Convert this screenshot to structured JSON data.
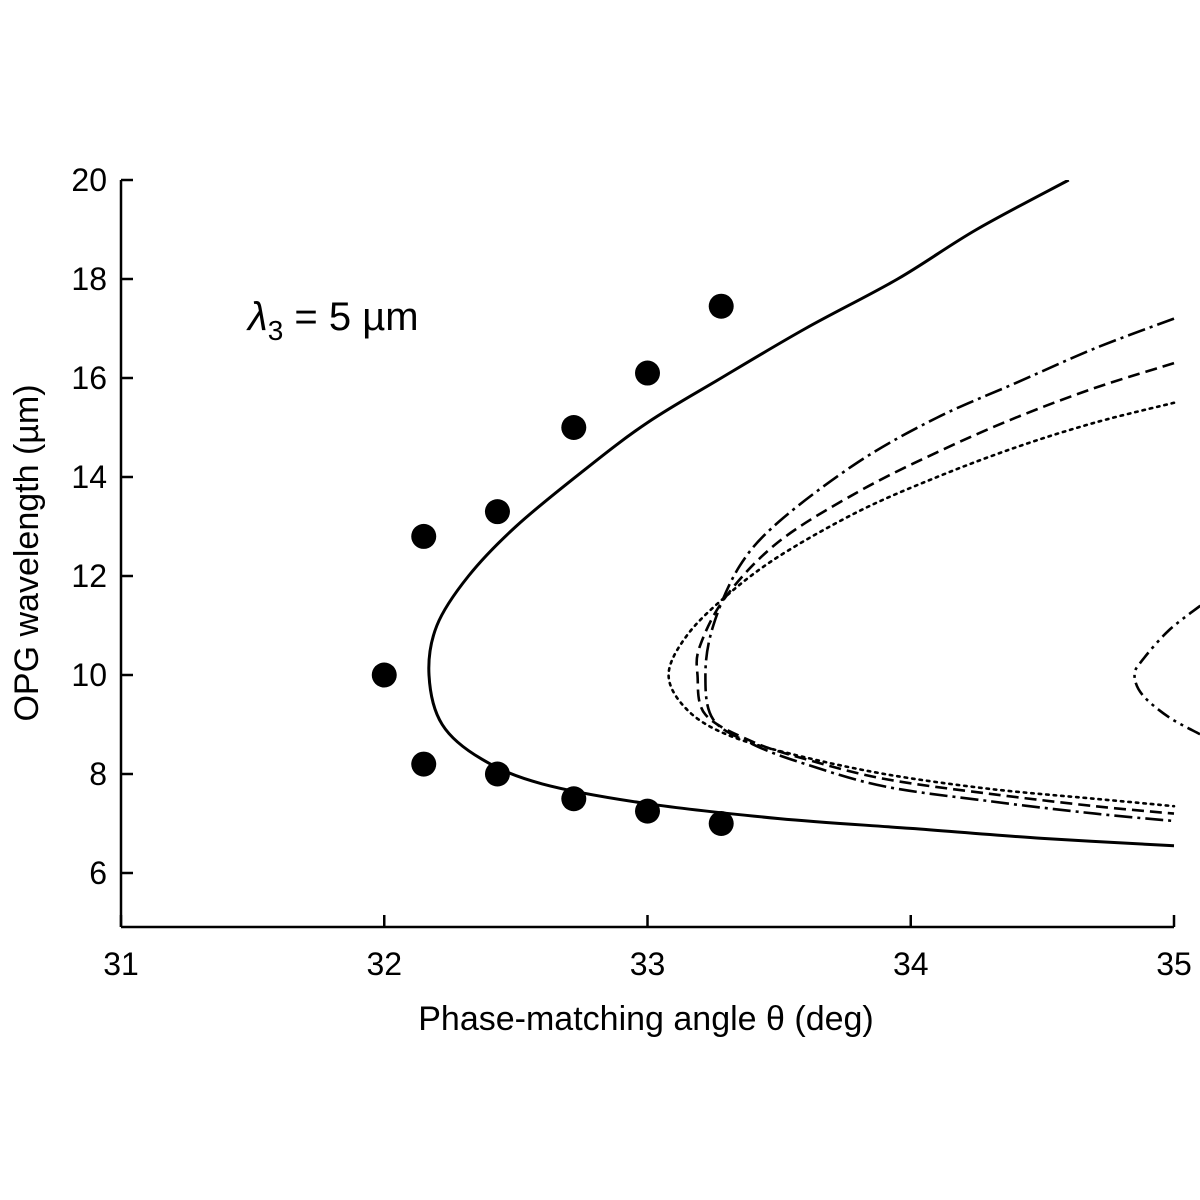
{
  "chart_data": {
    "type": "scatter",
    "title": "",
    "xlabel": "Phase-matching angle θ (deg)",
    "ylabel": "OPG wavelength (µm)",
    "xlim": [
      31,
      35
    ],
    "ylim": [
      5,
      20
    ],
    "x_ticks": [
      "31",
      "32",
      "33",
      "34",
      "35"
    ],
    "y_ticks": [
      "6",
      "8",
      "10",
      "12",
      "14",
      "16",
      "18",
      "20"
    ],
    "grid": false,
    "legend": "none",
    "annotation": {
      "symbol": "λ",
      "subscript": "3",
      "rest": " = 5 µm"
    },
    "markers": {
      "x": [
        32.0,
        32.15,
        32.15,
        32.43,
        32.43,
        32.72,
        32.72,
        33.0,
        33.0,
        33.28,
        33.28
      ],
      "y": [
        10.0,
        12.8,
        8.2,
        13.3,
        8.0,
        15.0,
        7.5,
        16.1,
        7.25,
        17.45,
        7.0
      ]
    },
    "curves": [
      {
        "style": "solid",
        "points": [
          [
            34.6,
            20.0
          ],
          [
            34.25,
            19.0
          ],
          [
            33.95,
            18.0
          ],
          [
            33.6,
            17.0
          ],
          [
            33.28,
            16.0
          ],
          [
            33.0,
            15.1
          ],
          [
            32.75,
            14.1
          ],
          [
            32.5,
            13.0
          ],
          [
            32.32,
            12.0
          ],
          [
            32.2,
            11.0
          ],
          [
            32.17,
            10.0
          ],
          [
            32.22,
            9.0
          ],
          [
            32.37,
            8.3
          ],
          [
            32.6,
            7.8
          ],
          [
            33.0,
            7.4
          ],
          [
            33.5,
            7.1
          ],
          [
            34.0,
            6.9
          ],
          [
            34.5,
            6.7
          ],
          [
            35.0,
            6.55
          ]
        ]
      },
      {
        "style": "dash-dot",
        "points": [
          [
            35.0,
            17.2
          ],
          [
            34.7,
            16.6
          ],
          [
            34.4,
            15.9
          ],
          [
            34.1,
            15.2
          ],
          [
            33.8,
            14.3
          ],
          [
            33.5,
            13.1
          ],
          [
            33.35,
            12.2
          ],
          [
            33.25,
            11.0
          ],
          [
            33.22,
            10.0
          ],
          [
            33.25,
            9.1
          ],
          [
            33.4,
            8.6
          ],
          [
            33.6,
            8.2
          ],
          [
            33.9,
            7.75
          ],
          [
            34.3,
            7.45
          ],
          [
            34.7,
            7.2
          ],
          [
            35.0,
            7.05
          ]
        ]
      },
      {
        "style": "dashed",
        "points": [
          [
            35.0,
            16.3
          ],
          [
            34.7,
            15.8
          ],
          [
            34.4,
            15.2
          ],
          [
            34.1,
            14.5
          ],
          [
            33.8,
            13.7
          ],
          [
            33.5,
            12.7
          ],
          [
            33.3,
            11.6
          ],
          [
            33.2,
            10.6
          ],
          [
            33.19,
            10.0
          ],
          [
            33.22,
            9.2
          ],
          [
            33.4,
            8.65
          ],
          [
            33.6,
            8.3
          ],
          [
            33.9,
            7.9
          ],
          [
            34.3,
            7.6
          ],
          [
            34.7,
            7.35
          ],
          [
            35.0,
            7.2
          ]
        ]
      },
      {
        "style": "dotted",
        "points": [
          [
            35.0,
            15.5
          ],
          [
            34.7,
            15.1
          ],
          [
            34.4,
            14.6
          ],
          [
            34.1,
            14.0
          ],
          [
            33.8,
            13.3
          ],
          [
            33.5,
            12.4
          ],
          [
            33.3,
            11.6
          ],
          [
            33.15,
            10.8
          ],
          [
            33.08,
            10.0
          ],
          [
            33.15,
            9.3
          ],
          [
            33.3,
            8.8
          ],
          [
            33.55,
            8.4
          ],
          [
            33.9,
            8.0
          ],
          [
            34.3,
            7.7
          ],
          [
            34.7,
            7.5
          ],
          [
            35.0,
            7.35
          ]
        ]
      },
      {
        "style": "dash-dot-dot",
        "points": [
          [
            35.1,
            11.4
          ],
          [
            34.98,
            10.9
          ],
          [
            34.88,
            10.3
          ],
          [
            34.85,
            10.0
          ],
          [
            34.88,
            9.6
          ],
          [
            34.98,
            9.15
          ],
          [
            35.1,
            8.8
          ]
        ]
      }
    ]
  }
}
